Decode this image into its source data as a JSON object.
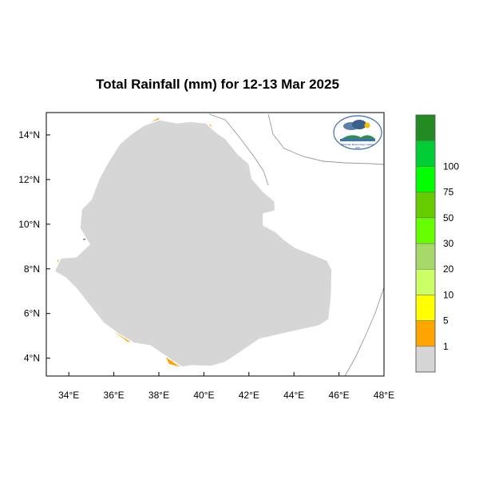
{
  "title": "Total Rainfall (mm) for 12-13 Mar 2025",
  "map": {
    "lon_range": [
      33,
      48
    ],
    "lat_range": [
      3.2,
      15.0
    ],
    "x_ticks": [
      {
        "value": 34,
        "label": "34°E"
      },
      {
        "value": 36,
        "label": "36°E"
      },
      {
        "value": 38,
        "label": "38°E"
      },
      {
        "value": 40,
        "label": "40°E"
      },
      {
        "value": 42,
        "label": "42°E"
      },
      {
        "value": 44,
        "label": "44°E"
      },
      {
        "value": 46,
        "label": "46°E"
      },
      {
        "value": 48,
        "label": "48°E"
      }
    ],
    "y_ticks": [
      {
        "value": 14,
        "label": "14°N"
      },
      {
        "value": 12,
        "label": "12°N"
      },
      {
        "value": 10,
        "label": "10°N"
      },
      {
        "value": 8,
        "label": "8°N"
      },
      {
        "value": 6,
        "label": "6°N"
      },
      {
        "value": 4,
        "label": "4°N"
      }
    ]
  },
  "legend": {
    "colors": [
      "#d6d6d6",
      "#ffa500",
      "#ffff00",
      "#ccff66",
      "#a6d96a",
      "#66ff00",
      "#66cc00",
      "#00ff00",
      "#00cc33",
      "#228b22"
    ],
    "labels": [
      "1",
      "5",
      "10",
      "20",
      "30",
      "50",
      "75",
      "100"
    ]
  },
  "colors": {
    "land": "#d6d6d6",
    "border": "#000000",
    "coast": "#999999",
    "c1": "#ffa500",
    "c5": "#ffff00",
    "c10": "#ccff66",
    "c20": "#a6d96a"
  },
  "logo": {
    "text": "Ethiopian Meteorology Institute",
    "short": "EMI"
  }
}
